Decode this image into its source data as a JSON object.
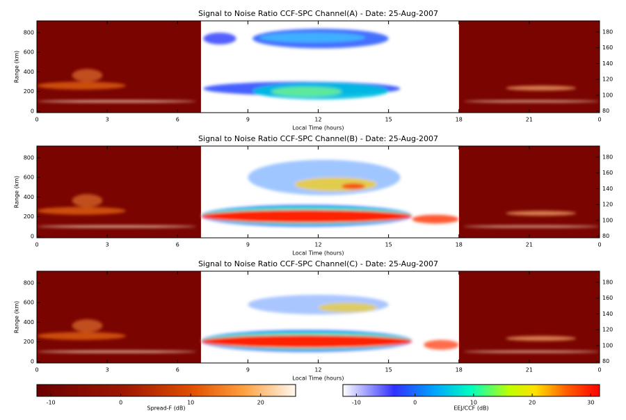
{
  "chart_data": [
    {
      "type": "heatmap",
      "title": "Signal to Noise Ratio CCF-SPC Channel(A) - Date: 25-Aug-2007",
      "xlabel": "Local Time (hours)",
      "ylabel": "Range (km)",
      "xlim": [
        0,
        24
      ],
      "xticks": [
        0,
        3,
        6,
        9,
        12,
        15,
        18,
        21,
        {
          "value": 24,
          "label": "0"
        }
      ],
      "ylim": [
        -15,
        920
      ],
      "yticks": [
        0,
        200,
        400,
        600,
        800
      ],
      "y2lim": [
        78,
        194
      ],
      "y2ticks": [
        80,
        100,
        120,
        140,
        160,
        180
      ]
    },
    {
      "type": "heatmap",
      "title": "Signal to Noise Ratio CCF-SPC Channel(B) - Date: 25-Aug-2007",
      "xlabel": "Local Time (hours)",
      "ylabel": "Range (km)",
      "xlim": [
        0,
        24
      ],
      "xticks": [
        0,
        3,
        6,
        9,
        12,
        15,
        18,
        21,
        {
          "value": 24,
          "label": "0"
        }
      ],
      "ylim": [
        -15,
        920
      ],
      "yticks": [
        0,
        200,
        400,
        600,
        800
      ],
      "y2lim": [
        78,
        194
      ],
      "y2ticks": [
        80,
        100,
        120,
        140,
        160,
        180
      ]
    },
    {
      "type": "heatmap",
      "title": "Signal to Noise Ratio CCF-SPC Channel(C) - Date: 25-Aug-2007",
      "xlabel": "Local Time (hours)",
      "ylabel": "Range (km)",
      "xlim": [
        0,
        24
      ],
      "xticks": [
        0,
        3,
        6,
        9,
        12,
        15,
        18,
        21,
        {
          "value": 24,
          "label": "0"
        }
      ],
      "ylim": [
        -15,
        920
      ],
      "yticks": [
        0,
        200,
        400,
        600,
        800
      ],
      "y2lim": [
        78,
        194
      ],
      "y2ticks": [
        80,
        100,
        120,
        140,
        160,
        180
      ]
    }
  ],
  "colorbars": [
    {
      "label": "Spread-F (dB)",
      "lim": [
        -12,
        25
      ],
      "ticks": [
        -10,
        0,
        10,
        20
      ]
    },
    {
      "label": "EEJ/CCF (dB)",
      "lim": [
        -12.3,
        31.5
      ],
      "ticks": [
        -10,
        0,
        10,
        20,
        30
      ]
    }
  ]
}
